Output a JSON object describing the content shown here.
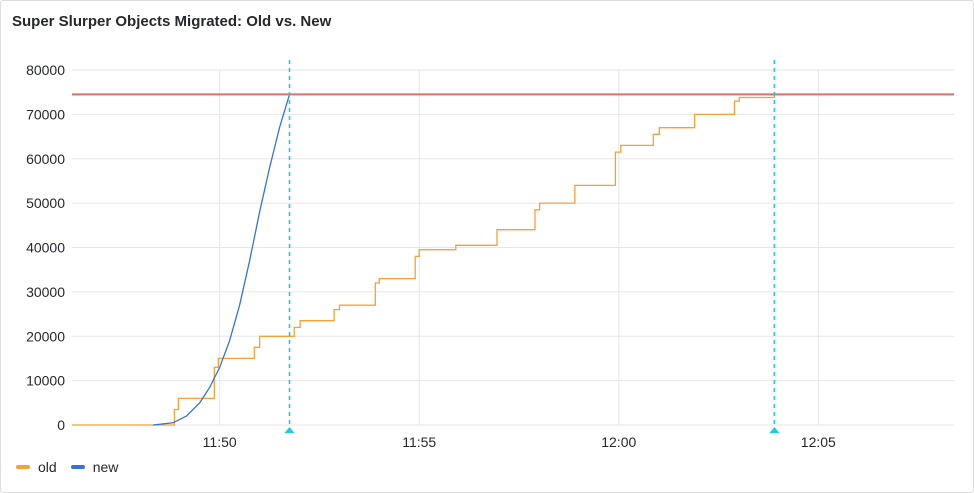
{
  "chart_data": {
    "type": "line",
    "title": "Super Slurper Objects Migrated: Old vs. New",
    "xlabel": "",
    "ylabel": "",
    "xlim": [
      "11:46:18",
      "12:08:24"
    ],
    "ylim": [
      0,
      80000
    ],
    "yticks": [
      0,
      10000,
      20000,
      30000,
      40000,
      50000,
      60000,
      70000,
      80000
    ],
    "xticks": [
      "11:50",
      "11:55",
      "12:00",
      "12:05"
    ],
    "grid": true,
    "legend_position": "bottom-left",
    "threshold": {
      "value": 74500,
      "color": "#e06c6c"
    },
    "markers": [
      "11:51:45",
      "12:03:54"
    ],
    "marker_color": "#1ec8ea",
    "series": [
      {
        "name": "old",
        "color": "#f7a035",
        "interpolation": "step-after",
        "points": [
          [
            "11:46:18",
            0
          ],
          [
            "11:48:52",
            3500
          ],
          [
            "11:48:58",
            6000
          ],
          [
            "11:49:52",
            13000
          ],
          [
            "11:49:58",
            15000
          ],
          [
            "11:50:52",
            17500
          ],
          [
            "11:51:00",
            20000
          ],
          [
            "11:51:52",
            22000
          ],
          [
            "11:52:01",
            23500
          ],
          [
            "11:52:52",
            26000
          ],
          [
            "11:53:00",
            27000
          ],
          [
            "11:53:54",
            32000
          ],
          [
            "11:54:00",
            33000
          ],
          [
            "11:54:54",
            38000
          ],
          [
            "11:55:00",
            39500
          ],
          [
            "11:55:55",
            40500
          ],
          [
            "11:56:57",
            44000
          ],
          [
            "11:57:54",
            48500
          ],
          [
            "11:58:01",
            50000
          ],
          [
            "11:58:54",
            54000
          ],
          [
            "11:59:55",
            61500
          ],
          [
            "12:00:03",
            63000
          ],
          [
            "12:00:52",
            65500
          ],
          [
            "12:01:01",
            67000
          ],
          [
            "12:01:54",
            70000
          ],
          [
            "12:02:54",
            73000
          ],
          [
            "12:03:01",
            73800
          ],
          [
            "12:03:54",
            74500
          ],
          [
            "12:08:24",
            74500
          ]
        ]
      },
      {
        "name": "new",
        "color": "#3274d9",
        "interpolation": "linear",
        "points": [
          [
            "11:48:20",
            0
          ],
          [
            "11:48:50",
            500
          ],
          [
            "11:49:10",
            2000
          ],
          [
            "11:49:30",
            5000
          ],
          [
            "11:49:45",
            8500
          ],
          [
            "11:50:00",
            13000
          ],
          [
            "11:50:15",
            19000
          ],
          [
            "11:50:30",
            27000
          ],
          [
            "11:50:45",
            37000
          ],
          [
            "11:51:00",
            48000
          ],
          [
            "11:51:15",
            58000
          ],
          [
            "11:51:30",
            67000
          ],
          [
            "11:51:45",
            74500
          ]
        ]
      }
    ]
  }
}
